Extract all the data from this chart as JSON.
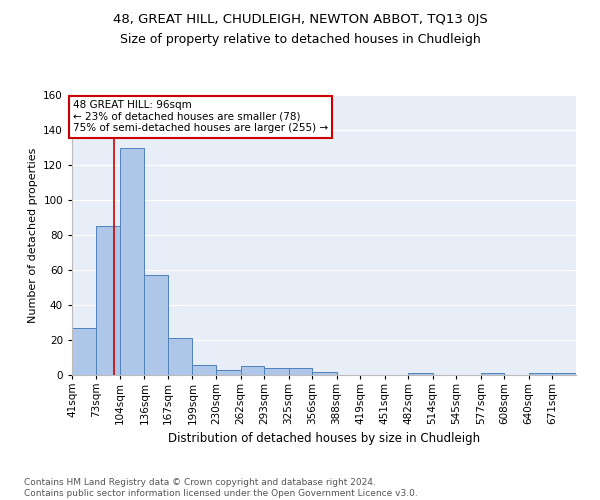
{
  "title1": "48, GREAT HILL, CHUDLEIGH, NEWTON ABBOT, TQ13 0JS",
  "title2": "Size of property relative to detached houses in Chudleigh",
  "xlabel": "Distribution of detached houses by size in Chudleigh",
  "ylabel": "Number of detached properties",
  "bin_labels": [
    "41sqm",
    "73sqm",
    "104sqm",
    "136sqm",
    "167sqm",
    "199sqm",
    "230sqm",
    "262sqm",
    "293sqm",
    "325sqm",
    "356sqm",
    "388sqm",
    "419sqm",
    "451sqm",
    "482sqm",
    "514sqm",
    "545sqm",
    "577sqm",
    "608sqm",
    "640sqm",
    "671sqm"
  ],
  "bin_edges": [
    41,
    73,
    104,
    136,
    167,
    199,
    230,
    262,
    293,
    325,
    356,
    388,
    419,
    451,
    482,
    514,
    545,
    577,
    608,
    640,
    671,
    702
  ],
  "values": [
    27,
    85,
    130,
    57,
    21,
    6,
    3,
    5,
    4,
    4,
    2,
    0,
    0,
    0,
    1,
    0,
    0,
    1,
    0,
    1,
    1
  ],
  "bar_color": "#aec6e8",
  "bar_edge_color": "#4f81bd",
  "bg_color": "#e8eef7",
  "grid_color": "#ffffff",
  "annotation_line1": "48 GREAT HILL: 96sqm",
  "annotation_line2": "← 23% of detached houses are smaller (78)",
  "annotation_line3": "75% of semi-detached houses are larger (255) →",
  "annotation_box_color": "#cc0000",
  "vline_x": 96,
  "vline_color": "#cc0000",
  "ylim": [
    0,
    160
  ],
  "yticks": [
    0,
    20,
    40,
    60,
    80,
    100,
    120,
    140,
    160
  ],
  "footer": "Contains HM Land Registry data © Crown copyright and database right 2024.\nContains public sector information licensed under the Open Government Licence v3.0.",
  "title1_fontsize": 9.5,
  "title2_fontsize": 9,
  "xlabel_fontsize": 8.5,
  "ylabel_fontsize": 8,
  "tick_fontsize": 7.5,
  "annotation_fontsize": 7.5,
  "footer_fontsize": 6.5
}
